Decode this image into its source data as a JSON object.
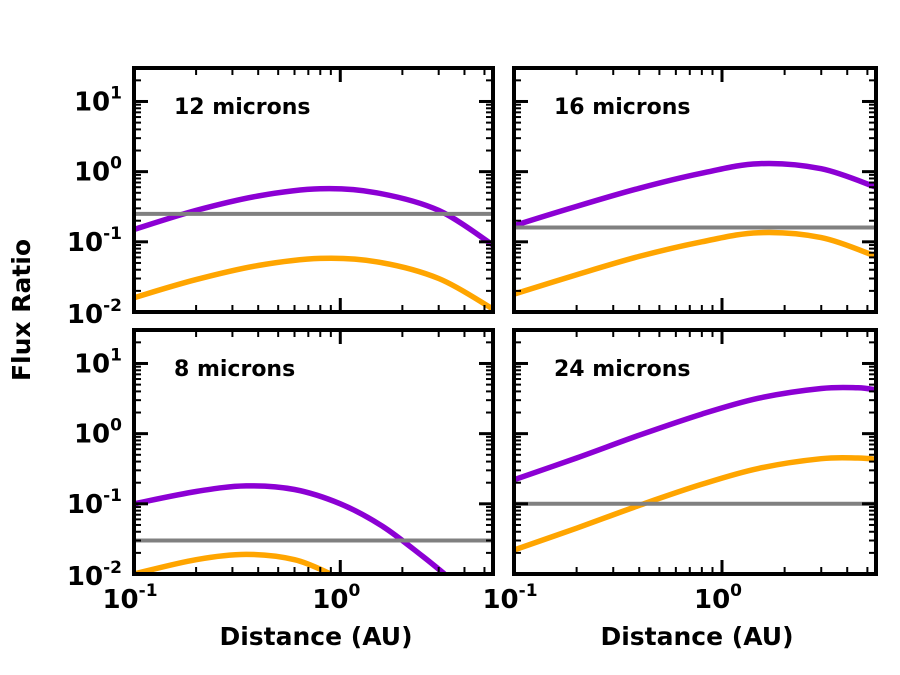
{
  "figure": {
    "ylabel": "Flux Ratio",
    "xlabel": "Distance (AU)"
  },
  "colors": {
    "purple": "#8c00d4",
    "orange": "#ffa500",
    "gray": "#808080",
    "frame": "#000000"
  },
  "chart_data": [
    {
      "type": "line",
      "title": "12 microns",
      "xscale": "log",
      "yscale": "log",
      "xlim": [
        0.1,
        5.5
      ],
      "ylim": [
        0.01,
        30
      ],
      "xticks": [
        "10^-1",
        "10^0"
      ],
      "yticks": [
        "10^-2",
        "10^-1",
        "10^0",
        "10^1"
      ],
      "series": [
        {
          "name": "purple",
          "color": "#8c00d4",
          "x": [
            0.1,
            0.2,
            0.4,
            0.8,
            1.5,
            3,
            5.5
          ],
          "y": [
            0.15,
            0.28,
            0.45,
            0.57,
            0.5,
            0.28,
            0.09
          ]
        },
        {
          "name": "orange",
          "color": "#ffa500",
          "x": [
            0.1,
            0.2,
            0.4,
            0.8,
            1.5,
            3,
            5.5
          ],
          "y": [
            0.016,
            0.029,
            0.046,
            0.058,
            0.052,
            0.03,
            0.011
          ]
        },
        {
          "name": "gray",
          "color": "#808080",
          "x": [
            0.1,
            5.5
          ],
          "y": [
            0.25,
            0.25
          ]
        }
      ]
    },
    {
      "type": "line",
      "title": "16 microns",
      "xscale": "log",
      "yscale": "log",
      "xlim": [
        0.1,
        5.5
      ],
      "ylim": [
        0.01,
        30
      ],
      "xticks": [
        "10^-1",
        "10^0"
      ],
      "yticks": [
        "10^-2",
        "10^-1",
        "10^0",
        "10^1"
      ],
      "series": [
        {
          "name": "purple",
          "color": "#8c00d4",
          "x": [
            0.1,
            0.2,
            0.4,
            0.8,
            1.5,
            3,
            5.5
          ],
          "y": [
            0.17,
            0.32,
            0.58,
            0.95,
            1.3,
            1.1,
            0.6
          ]
        },
        {
          "name": "orange",
          "color": "#ffa500",
          "x": [
            0.1,
            0.2,
            0.4,
            0.8,
            1.5,
            3,
            5.5
          ],
          "y": [
            0.018,
            0.034,
            0.062,
            0.1,
            0.135,
            0.115,
            0.062
          ]
        },
        {
          "name": "gray",
          "color": "#808080",
          "x": [
            0.1,
            5.5
          ],
          "y": [
            0.16,
            0.16
          ]
        }
      ]
    },
    {
      "type": "line",
      "title": "8 microns",
      "xscale": "log",
      "yscale": "log",
      "xlim": [
        0.1,
        5.5
      ],
      "ylim": [
        0.01,
        30
      ],
      "xticks": [
        "10^-1",
        "10^0"
      ],
      "yticks": [
        "10^-2",
        "10^-1",
        "10^0",
        "10^1"
      ],
      "series": [
        {
          "name": "purple",
          "color": "#8c00d4",
          "x": [
            0.1,
            0.2,
            0.35,
            0.6,
            1.0,
            1.6,
            2.5,
            3.2
          ],
          "y": [
            0.1,
            0.15,
            0.18,
            0.16,
            0.1,
            0.048,
            0.018,
            0.01
          ]
        },
        {
          "name": "orange",
          "color": "#ffa500",
          "x": [
            0.1,
            0.2,
            0.35,
            0.6,
            0.9
          ],
          "y": [
            0.01,
            0.016,
            0.019,
            0.016,
            0.01
          ]
        },
        {
          "name": "gray",
          "color": "#808080",
          "x": [
            0.1,
            5.5
          ],
          "y": [
            0.03,
            0.03
          ]
        }
      ]
    },
    {
      "type": "line",
      "title": "24 microns",
      "xscale": "log",
      "yscale": "log",
      "xlim": [
        0.1,
        5.5
      ],
      "ylim": [
        0.01,
        30
      ],
      "xticks": [
        "10^-1",
        "10^0"
      ],
      "yticks": [
        "10^-2",
        "10^-1",
        "10^0",
        "10^1"
      ],
      "series": [
        {
          "name": "purple",
          "color": "#8c00d4",
          "x": [
            0.1,
            0.2,
            0.4,
            0.8,
            1.5,
            3,
            4.5,
            5.5
          ],
          "y": [
            0.22,
            0.45,
            0.95,
            1.9,
            3.2,
            4.4,
            4.5,
            4.2
          ]
        },
        {
          "name": "orange",
          "color": "#ffa500",
          "x": [
            0.1,
            0.2,
            0.4,
            0.8,
            1.5,
            3,
            4.5,
            5.5
          ],
          "y": [
            0.022,
            0.045,
            0.095,
            0.19,
            0.32,
            0.44,
            0.45,
            0.43
          ]
        },
        {
          "name": "gray",
          "color": "#808080",
          "x": [
            0.1,
            5.5
          ],
          "y": [
            0.1,
            0.1
          ]
        }
      ]
    }
  ]
}
